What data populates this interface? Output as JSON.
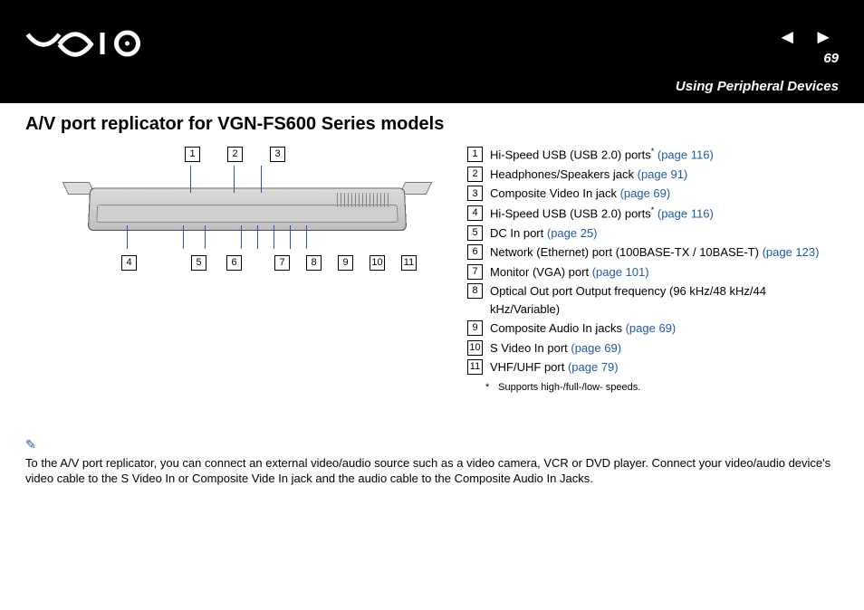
{
  "header": {
    "page_number": "69",
    "section": "Using Peripheral Devices",
    "nav_prev": "◄",
    "nav_next": "►"
  },
  "heading": "A/V port replicator for VGN-FS600 Series models",
  "callouts_top": [
    "1",
    "2",
    "3"
  ],
  "callouts_bottom": [
    "4",
    "5",
    "6",
    "7",
    "8",
    "9",
    "10",
    "11"
  ],
  "ports": [
    {
      "num": "1",
      "label": "Hi-Speed USB (USB 2.0) ports",
      "sup": "*",
      "page": "(page 116)"
    },
    {
      "num": "2",
      "label": "Headphones/Speakers jack ",
      "page": "(page 91)"
    },
    {
      "num": "3",
      "label": "Composite Video In jack ",
      "page": "(page 69)"
    },
    {
      "num": "4",
      "label": "Hi-Speed USB (USB 2.0) ports",
      "sup": "*",
      "page": "(page 116)"
    },
    {
      "num": "5",
      "label": "DC In port ",
      "page": "(page 25)"
    },
    {
      "num": "6",
      "label": "Network (Ethernet) port (100BASE-TX / 10BASE-T) ",
      "page": "(page 123)"
    },
    {
      "num": "7",
      "label": "Monitor (VGA) port ",
      "page": "(page 101)"
    },
    {
      "num": "8",
      "label": "Optical Out port Output frequency (96 kHz/48 kHz/44 kHz/Variable)",
      "page": ""
    },
    {
      "num": "9",
      "label": "Composite Audio In jacks ",
      "page": "(page 69)"
    },
    {
      "num": "10",
      "label": "S Video In port ",
      "page": "(page 69)"
    },
    {
      "num": "11",
      "label": "VHF/UHF port ",
      "page": "(page 79)"
    }
  ],
  "footnote_mark": "*",
  "footnote_text": "Supports high-/full-/low- speeds.",
  "note_icon": "✎",
  "note_text": "To the A/V port replicator, you can connect an external video/audio source such as a video camera, VCR or DVD player. Connect your video/audio device's video cable to the S Video In or Composite Vide In jack and the audio cable to the Composite Audio In Jacks.",
  "colors": {
    "link": "#1e5aa8",
    "header_bg": "#000000",
    "header_fg": "#ffffff"
  }
}
